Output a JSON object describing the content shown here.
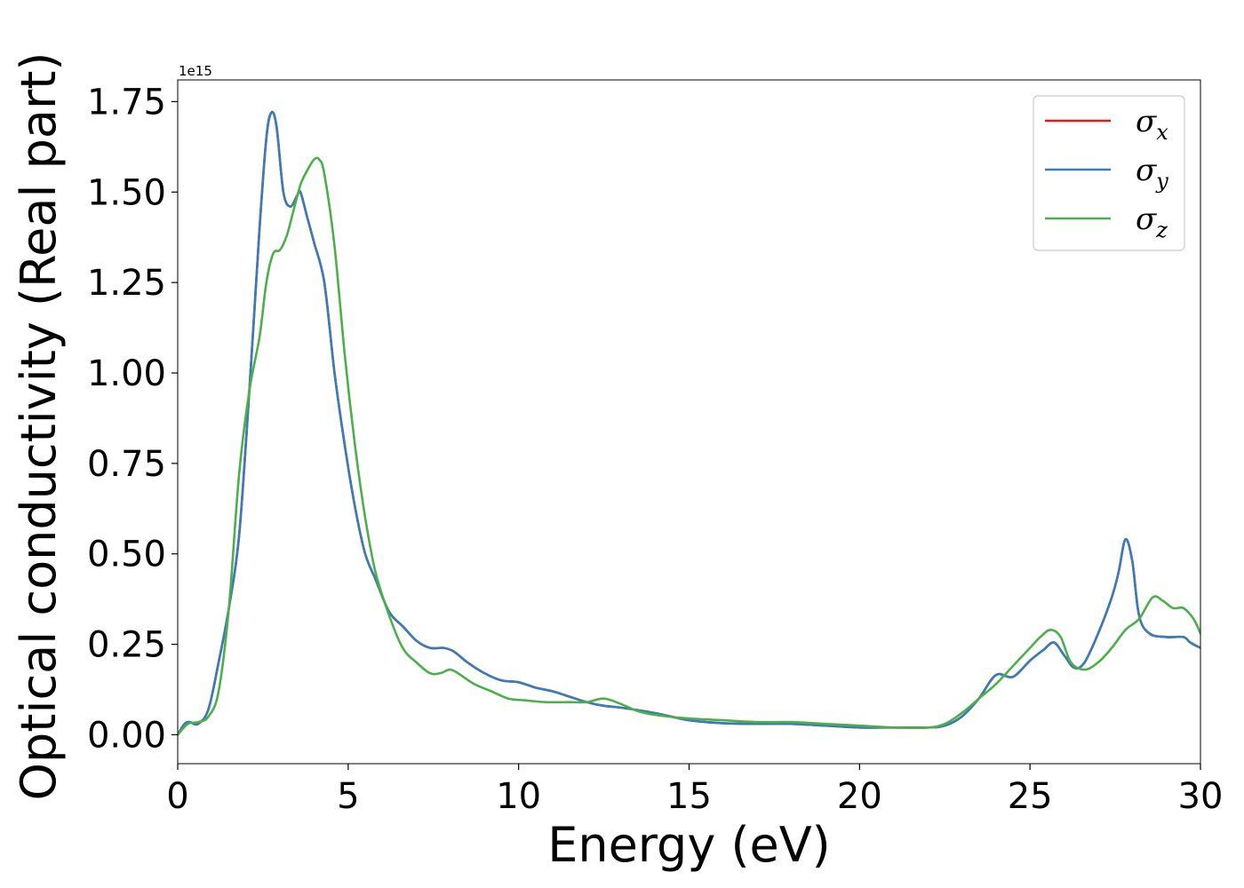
{
  "chart_data": {
    "type": "line",
    "xlabel": "Energy (eV)",
    "ylabel": "Optical conductivity (Real part)",
    "y_offset_label": "1e15",
    "xlim": [
      0,
      30
    ],
    "ylim": [
      -0.08,
      1.81
    ],
    "x_ticks": [
      0,
      5,
      10,
      15,
      20,
      25,
      30
    ],
    "x_tick_labels": [
      "0",
      "5",
      "10",
      "15",
      "20",
      "25",
      "30"
    ],
    "y_ticks": [
      0,
      0.25,
      0.5,
      0.75,
      1.0,
      1.25,
      1.5,
      1.75
    ],
    "y_tick_labels": [
      "0.00",
      "0.25",
      "0.50",
      "0.75",
      "1.00",
      "1.25",
      "1.50",
      "1.75"
    ],
    "grid": false,
    "legend": {
      "position": "top-right",
      "entries": [
        {
          "symbol": "σ",
          "sub": "x",
          "color": "#e41a1c"
        },
        {
          "symbol": "σ",
          "sub": "y",
          "color": "#377eb8"
        },
        {
          "symbol": "σ",
          "sub": "z",
          "color": "#4daf4a"
        }
      ]
    },
    "series": [
      {
        "color": "#e41a1c",
        "x": [
          0,
          0.2,
          0.35,
          0.6,
          0.9,
          1.2,
          1.5,
          1.8,
          2.1,
          2.4,
          2.6,
          2.75,
          2.9,
          3.1,
          3.3,
          3.5,
          3.6,
          3.8,
          4.0,
          4.3,
          4.6,
          4.9,
          5.2,
          5.5,
          5.8,
          6.2,
          6.6,
          7.0,
          7.4,
          7.8,
          8.1,
          8.5,
          9.0,
          9.5,
          10.0,
          10.5,
          11.0,
          11.5,
          12.0,
          12.5,
          13.0,
          14.0,
          15.0,
          16.0,
          17.0,
          18.0,
          19.0,
          20.0,
          21.0,
          22.0,
          22.5,
          23.0,
          23.5,
          24.0,
          24.5,
          25.0,
          25.4,
          25.7,
          26.0,
          26.3,
          26.6,
          27.0,
          27.4,
          27.6,
          27.8,
          28.0,
          28.2,
          28.5,
          29.0,
          29.5,
          29.7,
          30.0
        ],
        "values": [
          0.0,
          0.03,
          0.035,
          0.03,
          0.07,
          0.2,
          0.35,
          0.55,
          0.95,
          1.4,
          1.65,
          1.72,
          1.68,
          1.5,
          1.46,
          1.49,
          1.5,
          1.43,
          1.36,
          1.25,
          1.0,
          0.8,
          0.63,
          0.5,
          0.43,
          0.34,
          0.3,
          0.26,
          0.24,
          0.24,
          0.23,
          0.2,
          0.17,
          0.15,
          0.145,
          0.13,
          0.12,
          0.105,
          0.09,
          0.08,
          0.075,
          0.06,
          0.04,
          0.032,
          0.03,
          0.03,
          0.025,
          0.02,
          0.02,
          0.02,
          0.025,
          0.05,
          0.1,
          0.165,
          0.16,
          0.205,
          0.235,
          0.255,
          0.22,
          0.185,
          0.2,
          0.28,
          0.38,
          0.45,
          0.54,
          0.48,
          0.33,
          0.28,
          0.27,
          0.27,
          0.255,
          0.24
        ]
      },
      {
        "color": "#377eb8",
        "x": [
          0,
          0.2,
          0.35,
          0.6,
          0.9,
          1.2,
          1.5,
          1.8,
          2.1,
          2.4,
          2.6,
          2.75,
          2.9,
          3.1,
          3.3,
          3.5,
          3.6,
          3.8,
          4.0,
          4.3,
          4.6,
          4.9,
          5.2,
          5.5,
          5.8,
          6.2,
          6.6,
          7.0,
          7.4,
          7.8,
          8.1,
          8.5,
          9.0,
          9.5,
          10.0,
          10.5,
          11.0,
          11.5,
          12.0,
          12.5,
          13.0,
          14.0,
          15.0,
          16.0,
          17.0,
          18.0,
          19.0,
          20.0,
          21.0,
          22.0,
          22.5,
          23.0,
          23.5,
          24.0,
          24.5,
          25.0,
          25.4,
          25.7,
          26.0,
          26.3,
          26.6,
          27.0,
          27.4,
          27.6,
          27.8,
          28.0,
          28.2,
          28.5,
          29.0,
          29.5,
          29.7,
          30.0
        ],
        "values": [
          0.0,
          0.03,
          0.035,
          0.03,
          0.07,
          0.2,
          0.35,
          0.55,
          0.95,
          1.4,
          1.65,
          1.72,
          1.68,
          1.5,
          1.46,
          1.49,
          1.5,
          1.43,
          1.36,
          1.25,
          1.0,
          0.8,
          0.63,
          0.5,
          0.43,
          0.34,
          0.3,
          0.26,
          0.24,
          0.24,
          0.23,
          0.2,
          0.17,
          0.15,
          0.145,
          0.13,
          0.12,
          0.105,
          0.09,
          0.08,
          0.075,
          0.06,
          0.04,
          0.032,
          0.03,
          0.03,
          0.025,
          0.02,
          0.02,
          0.02,
          0.025,
          0.05,
          0.1,
          0.165,
          0.16,
          0.205,
          0.235,
          0.255,
          0.22,
          0.185,
          0.2,
          0.28,
          0.38,
          0.45,
          0.54,
          0.48,
          0.33,
          0.28,
          0.27,
          0.27,
          0.255,
          0.24
        ]
      },
      {
        "color": "#4daf4a",
        "x": [
          0,
          0.3,
          0.6,
          0.9,
          1.2,
          1.5,
          1.8,
          2.1,
          2.4,
          2.6,
          2.8,
          3.0,
          3.2,
          3.4,
          3.6,
          3.8,
          4.0,
          4.15,
          4.3,
          4.6,
          4.9,
          5.2,
          5.5,
          5.8,
          6.2,
          6.6,
          7.0,
          7.4,
          7.7,
          8.0,
          8.3,
          8.7,
          9.2,
          9.7,
          10.2,
          10.8,
          11.5,
          12.0,
          12.5,
          13.0,
          13.5,
          14.0,
          15.0,
          16.0,
          17.0,
          18.0,
          19.0,
          20.0,
          21.0,
          22.0,
          22.5,
          23.0,
          23.5,
          24.0,
          24.5,
          25.0,
          25.3,
          25.6,
          25.9,
          26.2,
          26.6,
          27.0,
          27.4,
          27.8,
          28.2,
          28.6,
          28.9,
          29.2,
          29.5,
          29.8,
          30.0
        ],
        "values": [
          0.0,
          0.03,
          0.035,
          0.05,
          0.12,
          0.35,
          0.72,
          0.95,
          1.1,
          1.25,
          1.33,
          1.34,
          1.38,
          1.45,
          1.52,
          1.56,
          1.59,
          1.59,
          1.55,
          1.35,
          1.05,
          0.8,
          0.6,
          0.45,
          0.33,
          0.24,
          0.2,
          0.17,
          0.17,
          0.18,
          0.165,
          0.14,
          0.12,
          0.1,
          0.095,
          0.09,
          0.09,
          0.09,
          0.1,
          0.085,
          0.065,
          0.055,
          0.045,
          0.04,
          0.035,
          0.035,
          0.03,
          0.025,
          0.02,
          0.02,
          0.03,
          0.06,
          0.1,
          0.14,
          0.19,
          0.24,
          0.27,
          0.29,
          0.27,
          0.2,
          0.18,
          0.2,
          0.24,
          0.29,
          0.32,
          0.38,
          0.37,
          0.35,
          0.35,
          0.32,
          0.28
        ]
      }
    ]
  }
}
